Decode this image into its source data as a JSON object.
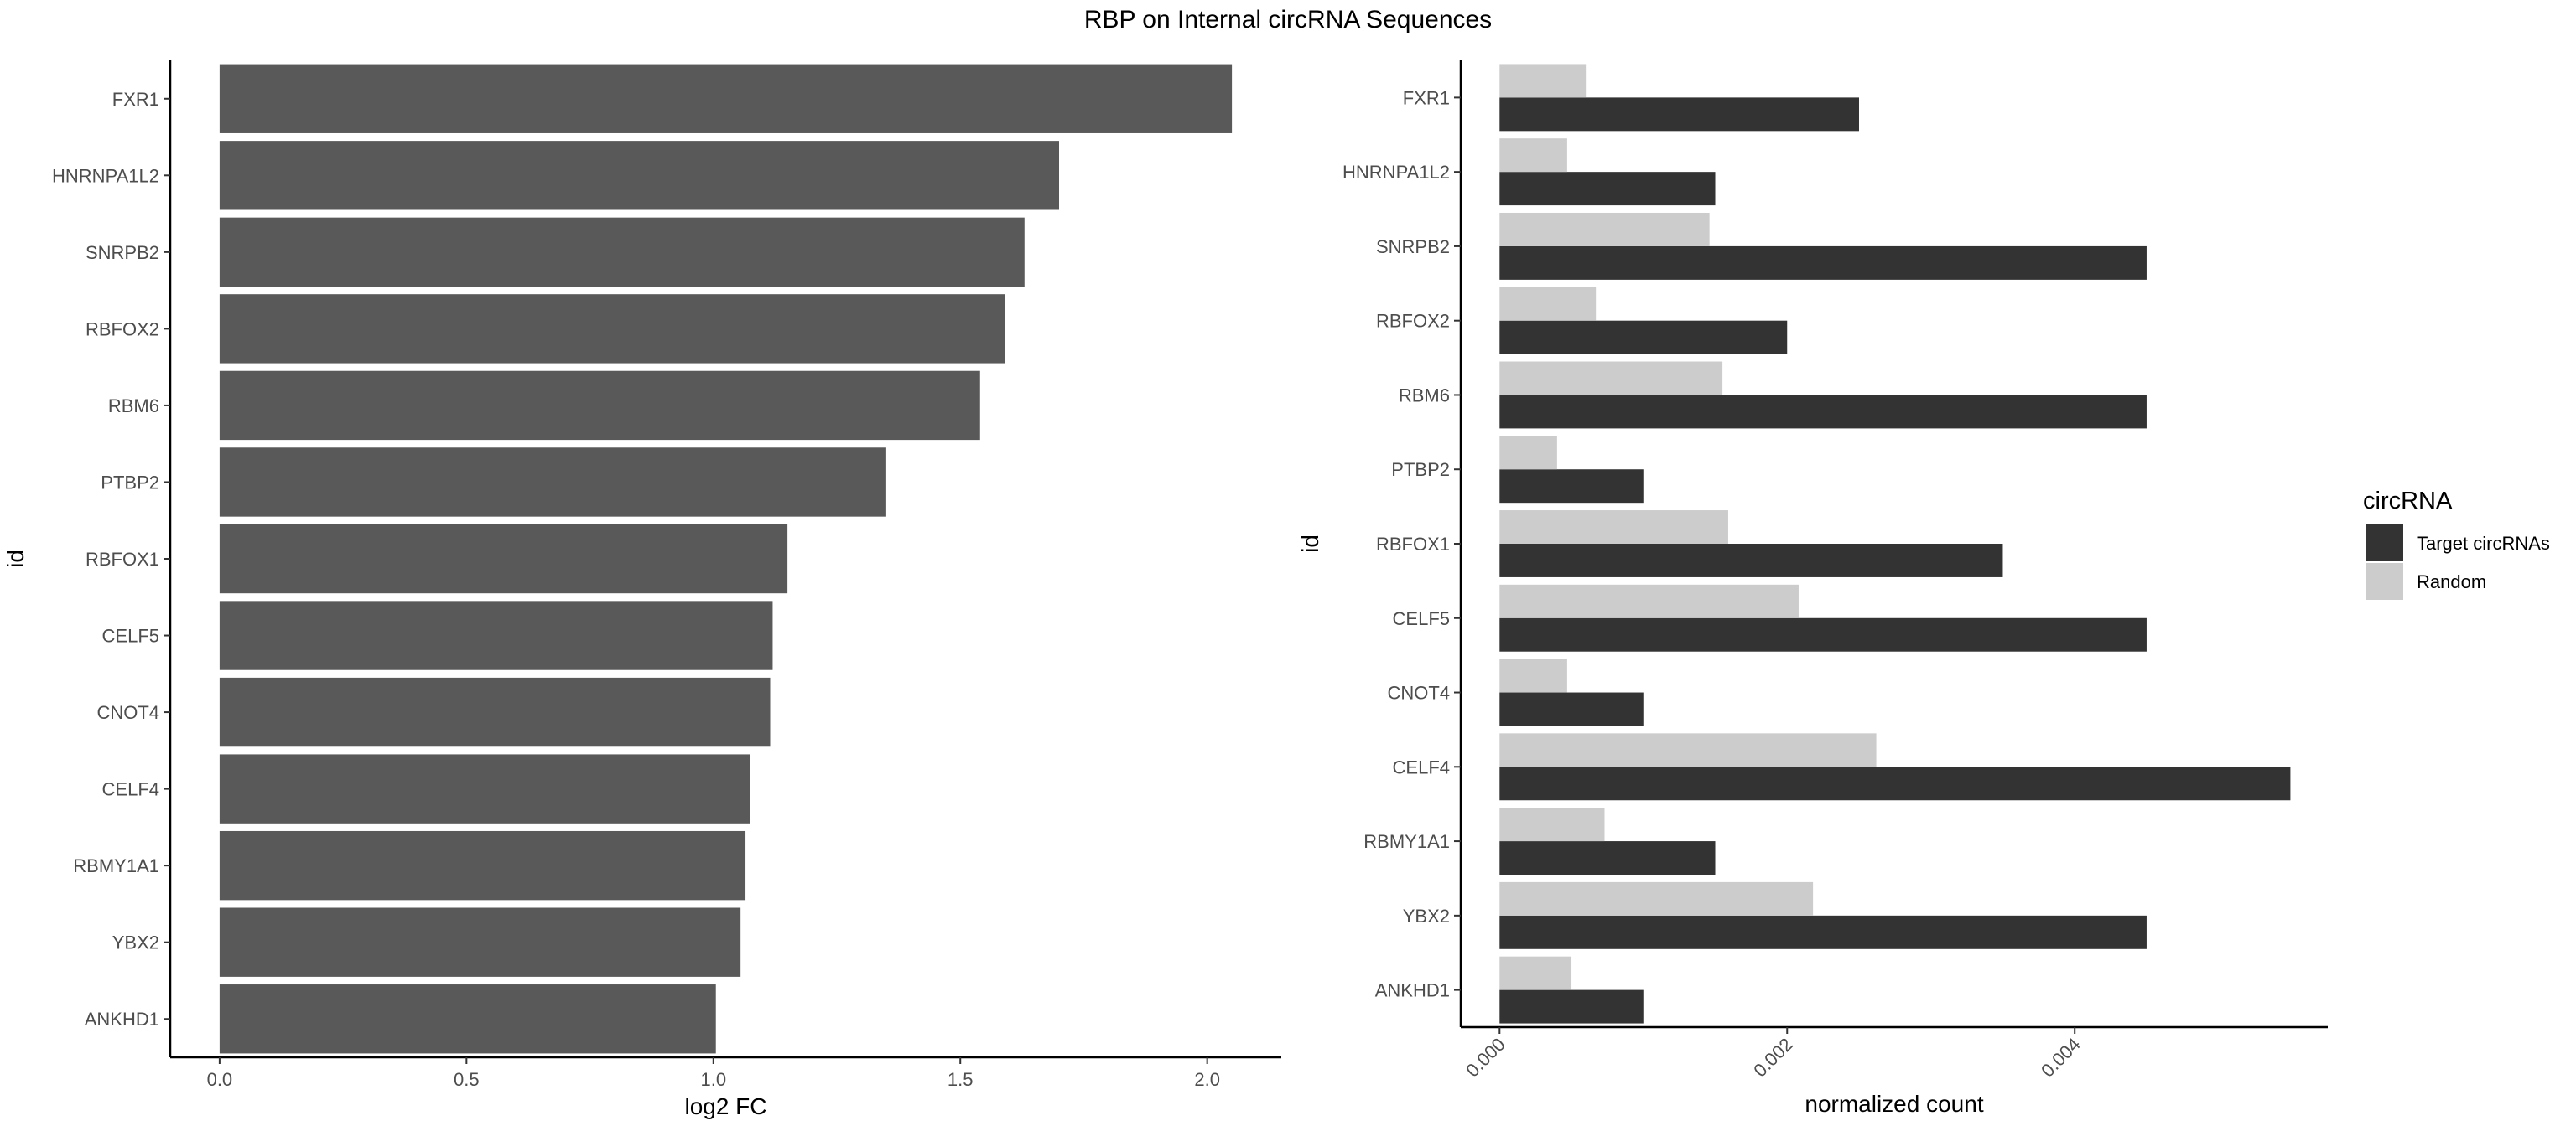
{
  "title": "RBP on Internal circRNA Sequences",
  "chart_data": [
    {
      "type": "bar",
      "orientation": "horizontal",
      "categories": [
        "FXR1",
        "HNRNPA1L2",
        "SNRPB2",
        "RBFOX2",
        "RBM6",
        "PTBP2",
        "RBFOX1",
        "CELF5",
        "CNOT4",
        "CELF4",
        "RBMY1A1",
        "YBX2",
        "ANKHD1"
      ],
      "values": [
        2.05,
        1.7,
        1.63,
        1.59,
        1.54,
        1.35,
        1.15,
        1.12,
        1.115,
        1.075,
        1.065,
        1.055,
        1.005
      ],
      "xlabel": "log2 FC",
      "ylabel": "id",
      "xlim": [
        -0.1,
        2.15
      ],
      "xticks": [
        0.0,
        0.5,
        1.0,
        1.5,
        2.0
      ],
      "xtick_labels": [
        "0.0",
        "0.5",
        "1.0",
        "1.5",
        "2.0"
      ],
      "grid": false,
      "bar_color": "#595959"
    },
    {
      "type": "bar",
      "orientation": "horizontal",
      "grouped": true,
      "categories": [
        "FXR1",
        "HNRNPA1L2",
        "SNRPB2",
        "RBFOX2",
        "RBM6",
        "PTBP2",
        "RBFOX1",
        "CELF5",
        "CNOT4",
        "CELF4",
        "RBMY1A1",
        "YBX2",
        "ANKHD1"
      ],
      "series": [
        {
          "name": "Target circRNAs",
          "color": "#333333",
          "values": [
            0.0025,
            0.0015,
            0.0045,
            0.002,
            0.0045,
            0.001,
            0.0035,
            0.0045,
            0.001,
            0.0055,
            0.0015,
            0.0045,
            0.001
          ]
        },
        {
          "name": "Random",
          "color": "#cccccc",
          "values": [
            0.0006,
            0.00047,
            0.00146,
            0.00067,
            0.00155,
            0.0004,
            0.00159,
            0.00208,
            0.00047,
            0.00262,
            0.00073,
            0.00218,
            0.0005
          ]
        }
      ],
      "xlabel": "normalized count",
      "ylabel": "id",
      "xlim": [
        -0.00027,
        0.00576
      ],
      "xticks": [
        0.0,
        0.002,
        0.004
      ],
      "xtick_labels": [
        "0.000",
        "0.002",
        "0.004"
      ],
      "xtick_rotation": 45,
      "grid": false,
      "legend": {
        "title": "circRNA",
        "position": "right"
      }
    }
  ]
}
